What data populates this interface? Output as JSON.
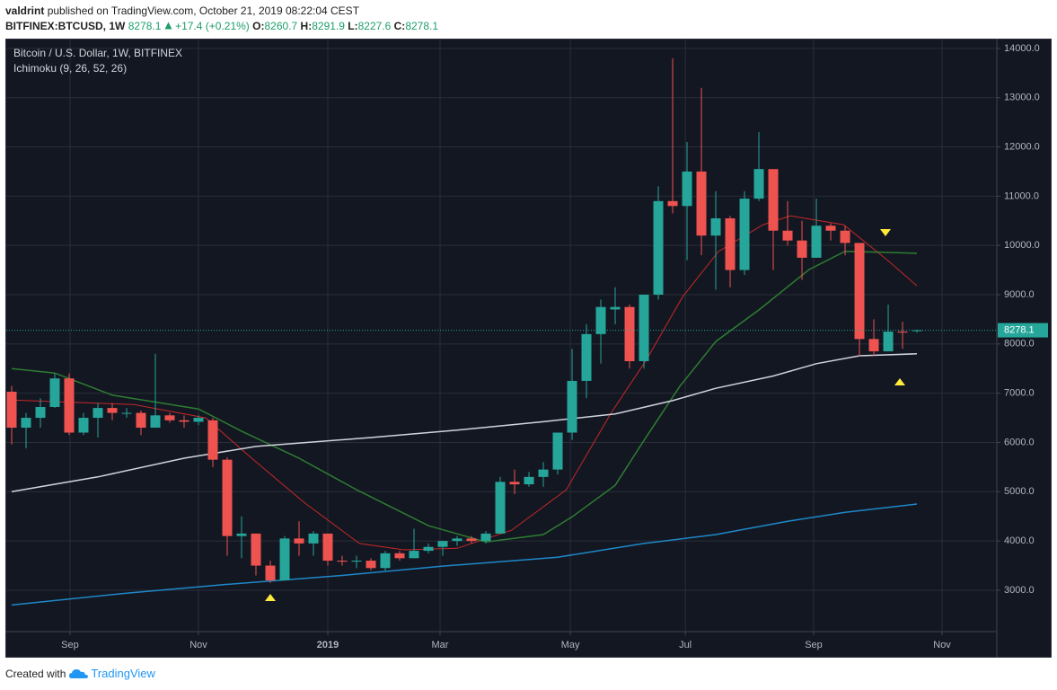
{
  "header": {
    "author": "valdrint",
    "published": "published on TradingView.com, October 21, 2019 08:22:04 CEST",
    "symbol": "BITFINEX:BTCUSD, 1W",
    "price": "8278.1",
    "change": "+17.4 (+0.21%)",
    "ohlc": [
      {
        "key": "O:",
        "value": "8260.7"
      },
      {
        "key": "H:",
        "value": "8291.9"
      },
      {
        "key": "L:",
        "value": "8227.6"
      },
      {
        "key": "C:",
        "value": "8278.1"
      }
    ]
  },
  "footer": {
    "created": "Created with",
    "brand": "TradingView"
  },
  "chart_data": {
    "type": "candlestick",
    "legend": [
      "Bitcoin / U.S. Dollar, 1W, BITFINEX",
      "Ichimoku (9, 26, 52, 26)"
    ],
    "x": [
      0,
      1,
      2,
      3,
      4,
      5,
      6,
      7,
      8,
      9,
      10,
      11,
      12,
      13,
      14,
      15,
      16,
      17,
      18,
      19,
      20,
      21,
      22,
      23,
      24,
      25,
      26,
      27,
      28,
      29,
      30,
      31,
      32,
      33,
      34,
      35,
      36,
      37,
      38,
      39,
      40,
      41,
      42,
      43,
      44,
      45,
      46,
      47,
      48,
      49,
      50,
      51,
      52,
      53,
      54,
      55,
      56,
      57,
      58,
      59,
      60,
      61,
      62,
      63
    ],
    "open": [
      7030,
      6300,
      6500,
      6720,
      7300,
      6200,
      6500,
      6700,
      6600,
      6600,
      6300,
      6550,
      6450,
      6420,
      6450,
      5650,
      4100,
      4150,
      3500,
      3200,
      4050,
      3950,
      4150,
      3600,
      3580,
      3600,
      3450,
      3750,
      3650,
      3800,
      3880,
      4000,
      4050,
      4000,
      4150,
      5200,
      5150,
      5300,
      5450,
      6200,
      7250,
      8200,
      8700,
      8750,
      7650,
      9000,
      10900,
      10800,
      11500,
      10200,
      10550,
      9500,
      10950,
      11550,
      10300,
      10100,
      9750,
      10400,
      10300,
      10050,
      8100,
      7850,
      8250,
      8260.7
    ],
    "high": [
      7150,
      6600,
      6900,
      7400,
      7400,
      6600,
      6800,
      6800,
      6700,
      6650,
      7800,
      6600,
      6550,
      6550,
      6500,
      5700,
      4500,
      4150,
      3600,
      4100,
      4400,
      4200,
      4150,
      3700,
      3700,
      3650,
      3800,
      3800,
      4250,
      3950,
      4000,
      4100,
      4100,
      4200,
      5300,
      5450,
      5400,
      5600,
      6200,
      7900,
      8400,
      8900,
      9150,
      8800,
      9000,
      11200,
      13800,
      12100,
      13200,
      11100,
      10600,
      11100,
      12300,
      11550,
      10900,
      10500,
      10950,
      10450,
      10400,
      10050,
      8500,
      8800,
      8450,
      8291.9
    ],
    "low": [
      5960,
      5880,
      6300,
      6700,
      6150,
      6150,
      6100,
      6450,
      6500,
      6150,
      6300,
      6400,
      6300,
      6350,
      5500,
      3700,
      3650,
      3300,
      3150,
      3200,
      3700,
      3700,
      3500,
      3500,
      3450,
      3400,
      3400,
      3600,
      3650,
      3750,
      3700,
      3900,
      3950,
      3950,
      4150,
      4950,
      5100,
      5100,
      5350,
      6050,
      6900,
      7600,
      8400,
      7500,
      7500,
      8900,
      10650,
      9700,
      9800,
      9100,
      9150,
      9400,
      10900,
      9500,
      10000,
      9300,
      9750,
      10100,
      9800,
      7750,
      7750,
      7850,
      7900,
      8227.6
    ],
    "close": [
      6300,
      6500,
      6720,
      7300,
      6200,
      6500,
      6700,
      6600,
      6600,
      6300,
      6550,
      6450,
      6420,
      6500,
      5650,
      4100,
      4150,
      3500,
      3200,
      4050,
      3950,
      4150,
      3600,
      3580,
      3600,
      3450,
      3750,
      3650,
      3800,
      3880,
      4000,
      4050,
      4000,
      4150,
      5200,
      5150,
      5300,
      5450,
      6200,
      7250,
      8200,
      8750,
      8750,
      7650,
      9000,
      10900,
      10800,
      11500,
      10200,
      10550,
      9500,
      10950,
      11550,
      10300,
      10100,
      9750,
      10400,
      10300,
      10050,
      8100,
      7850,
      8250,
      8230,
      8278.1
    ],
    "up_color": "#26a69a",
    "down_color": "#ef5350",
    "series": [
      {
        "color": "#c62828",
        "x": [
          0,
          8.5,
          13.5,
          16.7,
          20.4,
          24.2,
          27.3,
          31,
          34.8,
          38.6,
          41.7,
          44.2,
          46.7,
          49.2,
          52.3,
          54.2,
          57.9,
          61,
          63
        ],
        "values": [
          6860,
          6770,
          6500,
          5680,
          4770,
          3950,
          3820,
          3850,
          4220,
          5040,
          6590,
          7690,
          8960,
          9880,
          10420,
          10600,
          10420,
          9690,
          9180
        ]
      },
      {
        "color": "#2e7d32",
        "x": [
          0,
          3,
          7,
          13,
          16,
          20,
          24,
          29,
          33,
          37,
          39,
          42,
          44,
          46.5,
          49,
          52,
          55.5,
          58,
          63
        ],
        "values": [
          7500,
          7410,
          6960,
          6680,
          6230,
          5680,
          5040,
          4310,
          3980,
          4130,
          4490,
          5130,
          6040,
          7140,
          8050,
          8690,
          9510,
          9880,
          9840
        ]
      },
      {
        "color": "#d1d4dc",
        "x": [
          0,
          6,
          12,
          17,
          25,
          31,
          37,
          42,
          46,
          49,
          53,
          56,
          59,
          63
        ],
        "values": [
          5000,
          5300,
          5680,
          5920,
          6100,
          6250,
          6420,
          6580,
          6850,
          7100,
          7350,
          7600,
          7760,
          7800
        ]
      },
      {
        "color": "#1e88c8",
        "x": [
          0,
          8,
          15,
          23,
          30,
          38,
          44,
          49,
          54,
          58,
          63
        ],
        "values": [
          2700,
          2940,
          3120,
          3300,
          3490,
          3670,
          3950,
          4130,
          4400,
          4580,
          4750
        ]
      }
    ],
    "last_price": 8278.1,
    "xlim": [
      -0.375,
      68.56
    ],
    "ylim": [
      2160,
      14180
    ],
    "xticks": [
      {
        "value": 4.06,
        "label": "Sep"
      },
      {
        "value": 13.0,
        "label": "Nov"
      },
      {
        "value": 22.0,
        "label": "2019"
      },
      {
        "value": 29.81,
        "label": "Mar"
      },
      {
        "value": 38.88,
        "label": "May"
      },
      {
        "value": 46.88,
        "label": "Jul"
      },
      {
        "value": 55.81,
        "label": "Sep"
      },
      {
        "value": 64.75,
        "label": "Nov"
      }
    ],
    "yticks": [
      {
        "value": 3000,
        "label": "3000.0"
      },
      {
        "value": 4000,
        "label": "4000.0"
      },
      {
        "value": 5000,
        "label": "5000.0"
      },
      {
        "value": 6000,
        "label": "6000.0"
      },
      {
        "value": 7000,
        "label": "7000.0"
      },
      {
        "value": 8000,
        "label": "8000.0"
      },
      {
        "value": 9000,
        "label": "9000.0"
      },
      {
        "value": 10000,
        "label": "10000.0"
      },
      {
        "value": 11000,
        "label": "11000.0"
      },
      {
        "value": 12000,
        "label": "12000.0"
      },
      {
        "value": 13000,
        "label": "13000.0"
      },
      {
        "value": 14000,
        "label": "14000.0"
      }
    ],
    "grid": true
  }
}
